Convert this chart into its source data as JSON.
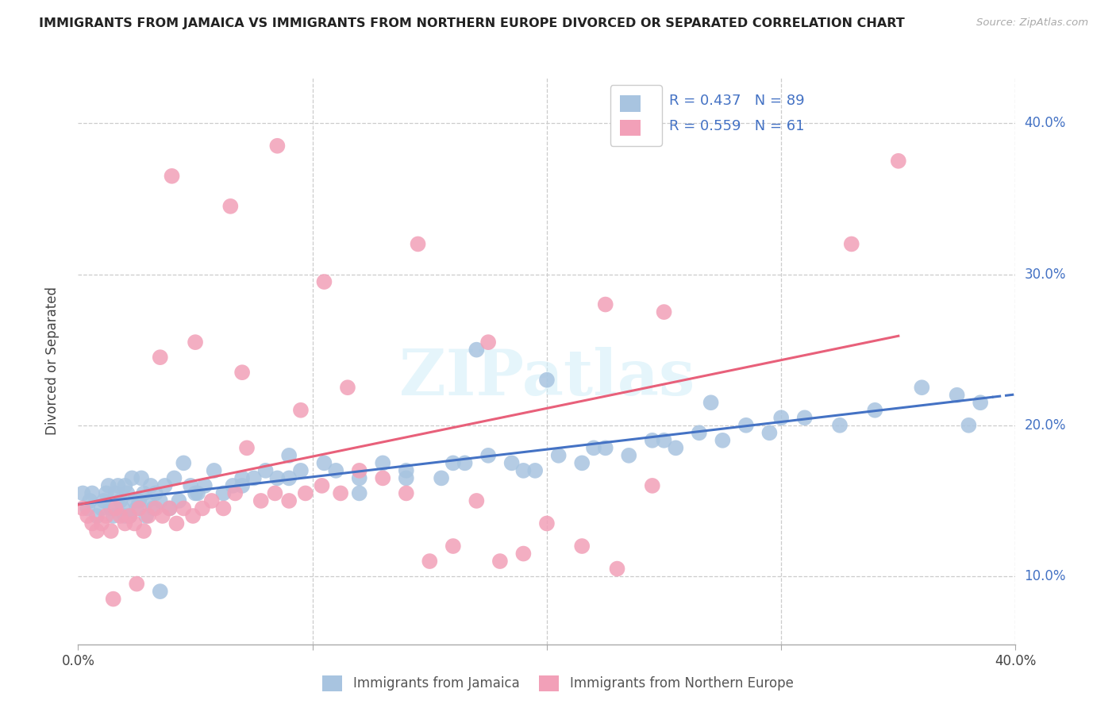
{
  "title": "IMMIGRANTS FROM JAMAICA VS IMMIGRANTS FROM NORTHERN EUROPE DIVORCED OR SEPARATED CORRELATION CHART",
  "source": "Source: ZipAtlas.com",
  "ylabel": "Divorced or Separated",
  "legend_label1": "Immigrants from Jamaica",
  "legend_label2": "Immigrants from Northern Europe",
  "r1": "0.437",
  "n1": "89",
  "r2": "0.559",
  "n2": "61",
  "color_blue": "#a8c4e0",
  "color_pink": "#f2a0b8",
  "line_blue": "#4472c4",
  "line_pink": "#e8607a",
  "watermark": "ZIPatlas",
  "background": "#ffffff",
  "grid_color": "#cccccc",
  "blue_x": [
    0.2,
    0.4,
    0.5,
    0.6,
    0.8,
    1.0,
    1.1,
    1.2,
    1.3,
    1.4,
    1.5,
    1.6,
    1.7,
    1.8,
    1.9,
    2.0,
    2.1,
    2.2,
    2.3,
    2.4,
    2.5,
    2.6,
    2.7,
    2.8,
    2.9,
    3.0,
    3.1,
    3.2,
    3.3,
    3.5,
    3.7,
    3.9,
    4.1,
    4.3,
    4.5,
    4.8,
    5.1,
    5.4,
    5.8,
    6.2,
    6.6,
    7.0,
    7.5,
    8.0,
    8.5,
    9.0,
    9.5,
    10.5,
    11.0,
    12.0,
    13.0,
    14.0,
    15.5,
    16.5,
    17.5,
    18.5,
    19.5,
    20.5,
    21.5,
    22.5,
    23.5,
    24.5,
    25.5,
    26.5,
    27.5,
    28.5,
    29.5,
    31.0,
    32.5,
    34.0,
    36.0,
    37.5,
    38.5,
    2.0,
    3.5,
    5.0,
    7.0,
    9.0,
    12.0,
    14.0,
    16.0,
    19.0,
    22.0,
    25.0,
    27.0,
    30.0,
    38.0,
    17.0,
    20.0
  ],
  "blue_y": [
    15.5,
    14.5,
    15.0,
    15.5,
    14.0,
    14.5,
    15.0,
    15.5,
    16.0,
    14.5,
    14.0,
    15.5,
    16.0,
    15.0,
    14.5,
    16.0,
    15.5,
    14.0,
    16.5,
    15.0,
    14.5,
    15.0,
    16.5,
    15.5,
    14.0,
    15.0,
    16.0,
    14.5,
    15.5,
    15.0,
    16.0,
    14.5,
    16.5,
    15.0,
    17.5,
    16.0,
    15.5,
    16.0,
    17.0,
    15.5,
    16.0,
    16.5,
    16.5,
    17.0,
    16.5,
    18.0,
    17.0,
    17.5,
    17.0,
    16.5,
    17.5,
    17.0,
    16.5,
    17.5,
    18.0,
    17.5,
    17.0,
    18.0,
    17.5,
    18.5,
    18.0,
    19.0,
    18.5,
    19.5,
    19.0,
    20.0,
    19.5,
    20.5,
    20.0,
    21.0,
    22.5,
    22.0,
    21.5,
    14.0,
    9.0,
    15.5,
    16.0,
    16.5,
    15.5,
    16.5,
    17.5,
    17.0,
    18.5,
    19.0,
    21.5,
    20.5,
    20.0,
    25.0,
    23.0
  ],
  "pink_x": [
    0.2,
    0.4,
    0.6,
    0.8,
    1.0,
    1.2,
    1.4,
    1.6,
    1.8,
    2.0,
    2.2,
    2.4,
    2.6,
    2.8,
    3.0,
    3.3,
    3.6,
    3.9,
    4.2,
    4.5,
    4.9,
    5.3,
    5.7,
    6.2,
    6.7,
    7.2,
    7.8,
    8.4,
    9.0,
    9.7,
    10.4,
    11.2,
    12.0,
    13.0,
    14.0,
    15.0,
    16.0,
    17.0,
    18.0,
    19.0,
    20.0,
    21.5,
    23.0,
    24.5,
    1.5,
    2.5,
    3.5,
    5.0,
    7.0,
    9.5,
    11.5,
    14.5,
    17.5,
    22.5,
    25.0,
    33.0,
    35.0,
    4.0,
    6.5,
    8.5,
    10.5
  ],
  "pink_y": [
    14.5,
    14.0,
    13.5,
    13.0,
    13.5,
    14.0,
    13.0,
    14.5,
    14.0,
    13.5,
    14.0,
    13.5,
    14.5,
    13.0,
    14.0,
    14.5,
    14.0,
    14.5,
    13.5,
    14.5,
    14.0,
    14.5,
    15.0,
    14.5,
    15.5,
    18.5,
    15.0,
    15.5,
    15.0,
    15.5,
    16.0,
    15.5,
    17.0,
    16.5,
    15.5,
    11.0,
    12.0,
    15.0,
    11.0,
    11.5,
    13.5,
    12.0,
    10.5,
    16.0,
    8.5,
    9.5,
    24.5,
    25.5,
    23.5,
    21.0,
    22.5,
    32.0,
    25.5,
    28.0,
    27.5,
    32.0,
    37.5,
    36.5,
    34.5,
    38.5,
    29.5
  ]
}
